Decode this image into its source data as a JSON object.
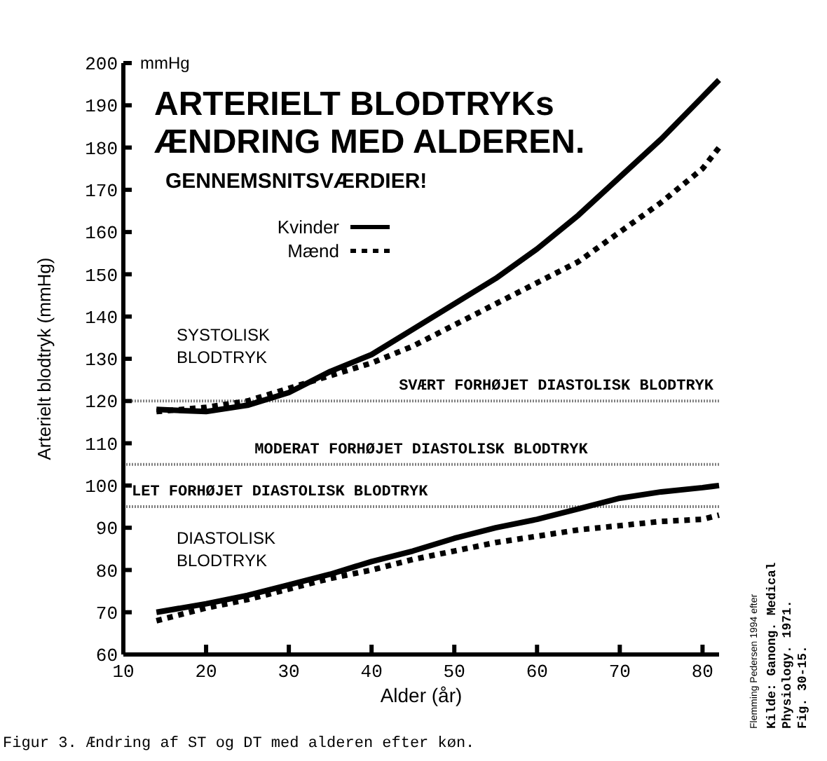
{
  "chart_data": {
    "type": "line",
    "title": "ARTERIELT BLODTRYKs\nÆNDRING MED ALDEREN.",
    "subtitle": "GENNEMSNITSVÆRDIER!",
    "xlabel": "Alder (år)",
    "ylabel": "Arterielt blodtryk (mmHg)",
    "xlim": [
      10,
      82
    ],
    "xticks": [
      10,
      20,
      30,
      40,
      50,
      60,
      70,
      80
    ],
    "ylim": [
      60,
      200
    ],
    "yticks": [
      60,
      70,
      80,
      90,
      100,
      110,
      120,
      130,
      140,
      150,
      160,
      170,
      180,
      190,
      200
    ],
    "series": [
      {
        "name": "Kvinder",
        "color": "#000000",
        "line_style": "solid",
        "x": [
          14,
          20,
          25,
          30,
          35,
          40,
          45,
          50,
          55,
          60,
          65,
          70,
          75,
          80,
          82
        ],
        "values": [
          118,
          117.5,
          119,
          122,
          127,
          131,
          137,
          143,
          149,
          156,
          164,
          173,
          182,
          192,
          196
        ]
      },
      {
        "name": "Mænd",
        "color": "#000000",
        "line_style": "dotted",
        "x": [
          14,
          20,
          25,
          30,
          35,
          40,
          45,
          50,
          55,
          60,
          65,
          70,
          75,
          80,
          82
        ],
        "values": [
          117.5,
          118.5,
          120,
          123,
          126,
          129,
          133,
          138,
          143,
          148,
          153,
          160,
          167,
          175,
          180
        ]
      },
      {
        "color": "#000000",
        "line_style": "solid",
        "x": [
          14,
          20,
          25,
          30,
          35,
          40,
          45,
          50,
          55,
          60,
          65,
          70,
          75,
          80,
          82
        ],
        "values": [
          70,
          72,
          74,
          76.5,
          79,
          82,
          84.5,
          87.5,
          90,
          92,
          94.5,
          97,
          98.5,
          99.5,
          100
        ]
      },
      {
        "color": "#000000",
        "line_style": "dotted",
        "x": [
          14,
          20,
          25,
          30,
          35,
          40,
          45,
          50,
          55,
          60,
          65,
          70,
          75,
          80,
          82
        ],
        "values": [
          68,
          71,
          73,
          75.5,
          78,
          80,
          82.5,
          84.5,
          86.5,
          88,
          89.5,
          90.5,
          91.5,
          92,
          93
        ]
      }
    ],
    "ref_lines": [
      {
        "axis": "y",
        "value": 120,
        "label": "SVÆRT FORHØJET DIASTOLISK BLODTRYK",
        "color": "#808080",
        "line_style": "dotted"
      },
      {
        "axis": "y",
        "value": 105,
        "label": "MODERAT FORHØJET DIASTOLISK BLODTRYK",
        "color": "#808080",
        "line_style": "dotted"
      },
      {
        "axis": "y",
        "value": 95,
        "label": "LET FORHØJET DIASTOLISK BLODTRYK",
        "color": "#808080",
        "line_style": "dotted"
      }
    ],
    "annotations": [
      "mmHg",
      "Flemming Pedersen 1994 efter",
      "Kilde: Ganong. Medical\nPhysiology. 1971.\nFig. 30-15.",
      "Figur 3. Ændring af ST og DT med alderen efter køn.",
      "SYSTOLISK\nBLODTRYK",
      "DIASTOLISK\nBLODTRYK"
    ],
    "legend": "top left",
    "grid": false
  }
}
